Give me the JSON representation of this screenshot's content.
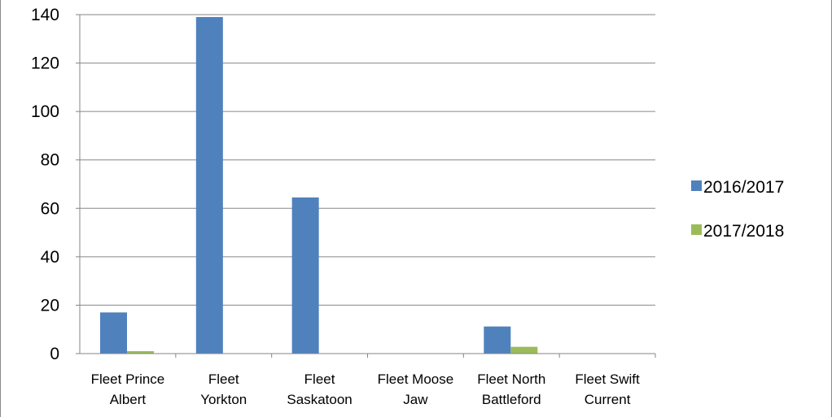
{
  "chart_data": {
    "type": "bar",
    "title": "",
    "xlabel": "",
    "ylabel": "",
    "ylim": [
      0,
      140
    ],
    "yticks": [
      0,
      20,
      40,
      60,
      80,
      100,
      120,
      140
    ],
    "grid": true,
    "legend_position": "right",
    "categories": [
      [
        "Fleet Prince",
        "Albert"
      ],
      [
        "Fleet",
        "Yorkton"
      ],
      [
        "Fleet",
        "Saskatoon"
      ],
      [
        "Fleet Moose",
        "Jaw"
      ],
      [
        "Fleet North",
        "Battleford"
      ],
      [
        "Fleet Swift",
        "Current"
      ]
    ],
    "series": [
      {
        "name": "2016/2017",
        "color": "#4F81BD",
        "values": [
          17,
          139,
          64.5,
          0,
          11.2,
          0
        ]
      },
      {
        "name": "2017/2018",
        "color": "#9BBB59",
        "values": [
          1,
          0,
          0,
          0,
          2.8,
          0
        ]
      }
    ]
  }
}
